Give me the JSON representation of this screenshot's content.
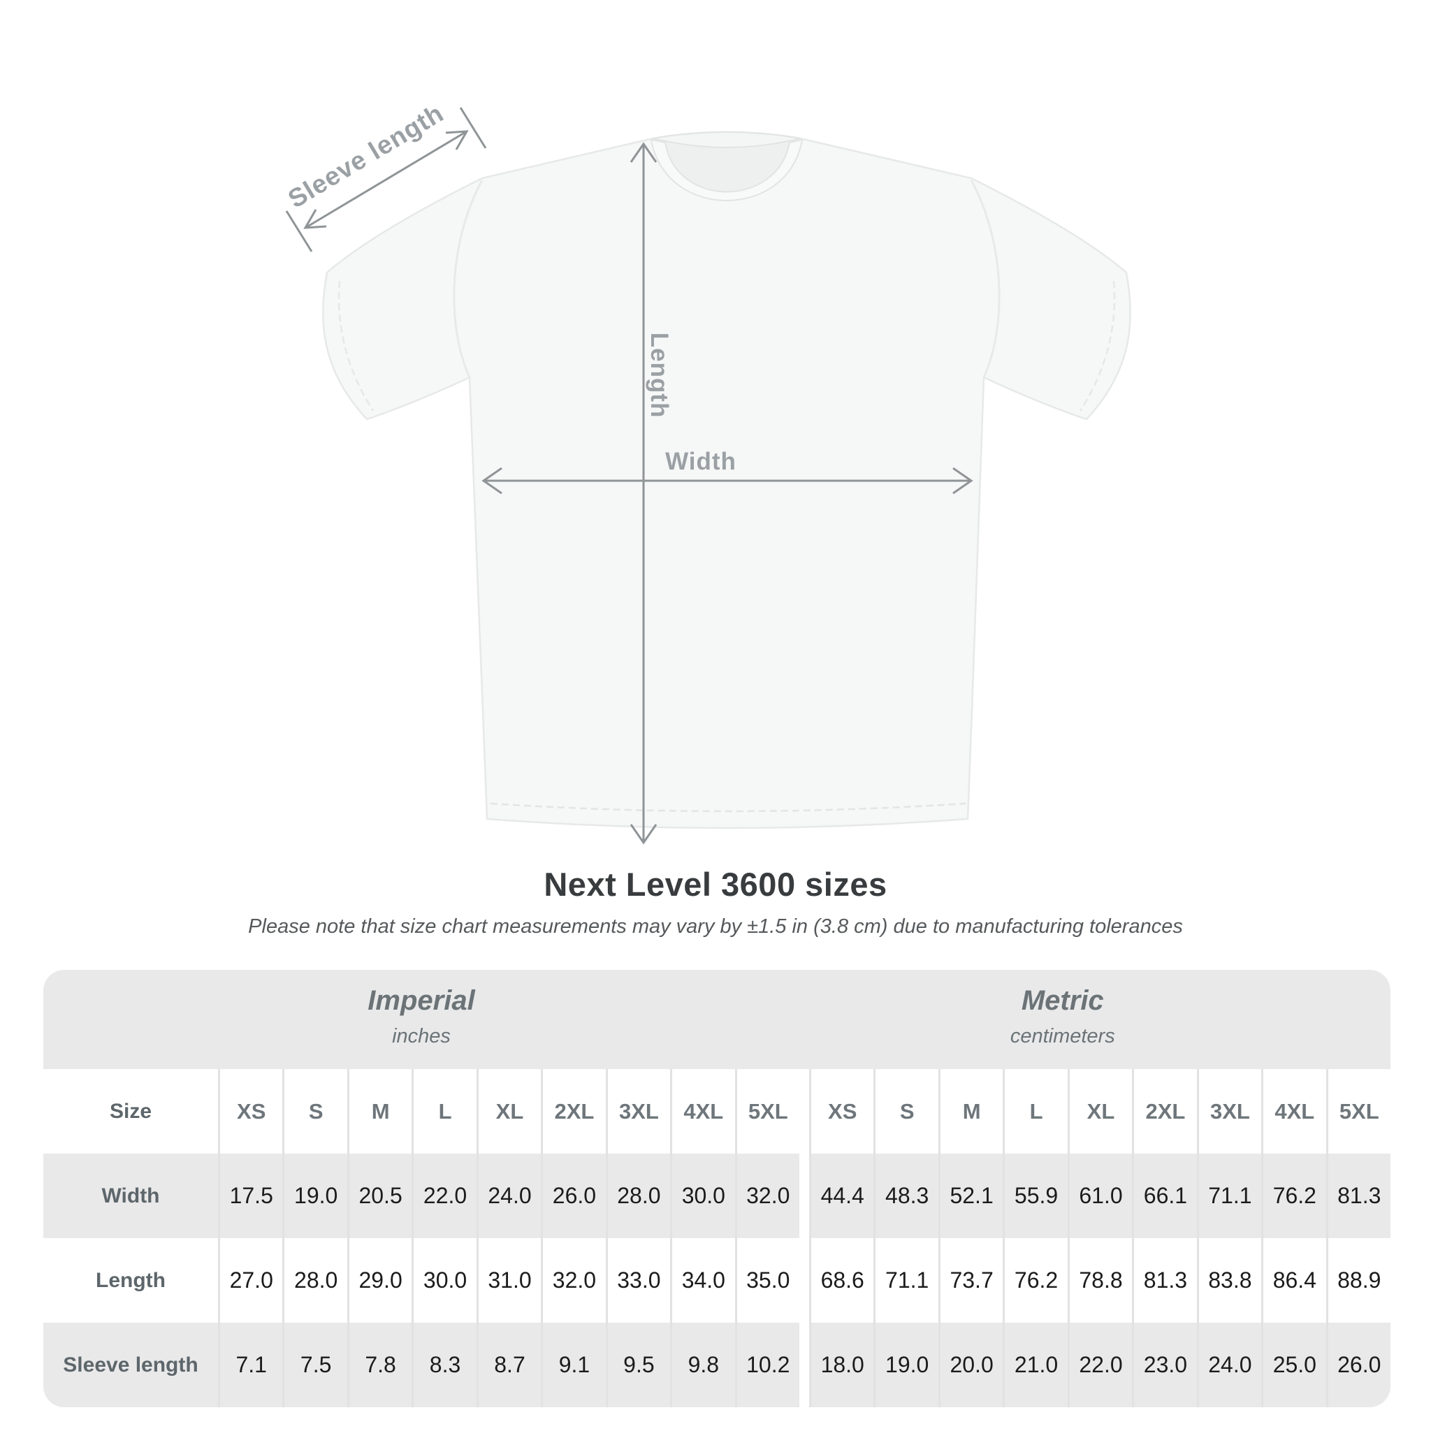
{
  "title": "Next Level 3600 sizes",
  "subtitle": "Please note that size chart measurements may vary by ±1.5 in (3.8 cm) due to manufacturing tolerances",
  "diagram": {
    "sleeve_label": "Sleeve length",
    "length_label": "Length",
    "width_label": "Width"
  },
  "table": {
    "size_header": "Size",
    "groups": [
      {
        "name": "Imperial",
        "unit": "inches"
      },
      {
        "name": "Metric",
        "unit": "centimeters"
      }
    ],
    "sizes": [
      "XS",
      "S",
      "M",
      "L",
      "XL",
      "2XL",
      "3XL",
      "4XL",
      "5XL"
    ],
    "rows": [
      {
        "label": "Width",
        "imperial": [
          "17.5",
          "19.0",
          "20.5",
          "22.0",
          "24.0",
          "26.0",
          "28.0",
          "30.0",
          "32.0"
        ],
        "metric": [
          "44.4",
          "48.3",
          "52.1",
          "55.9",
          "61.0",
          "66.1",
          "71.1",
          "76.2",
          "81.3"
        ]
      },
      {
        "label": "Length",
        "imperial": [
          "27.0",
          "28.0",
          "29.0",
          "30.0",
          "31.0",
          "32.0",
          "33.0",
          "34.0",
          "35.0"
        ],
        "metric": [
          "68.6",
          "71.1",
          "73.7",
          "76.2",
          "78.8",
          "81.3",
          "83.8",
          "86.4",
          "88.9"
        ]
      },
      {
        "label": "Sleeve length",
        "imperial": [
          "7.1",
          "7.5",
          "7.8",
          "8.3",
          "8.7",
          "9.1",
          "9.5",
          "9.8",
          "10.2"
        ],
        "metric": [
          "18.0",
          "19.0",
          "20.0",
          "21.0",
          "22.0",
          "23.0",
          "24.0",
          "25.0",
          "26.0"
        ]
      }
    ]
  },
  "colors": {
    "band_gray": "#e9e9ea",
    "arrow_gray": "#8f9496",
    "diagram_label_gray": "#9aa0a4",
    "value_text": "#1b1b1b",
    "shirt_fill": "#f6f7f7"
  }
}
